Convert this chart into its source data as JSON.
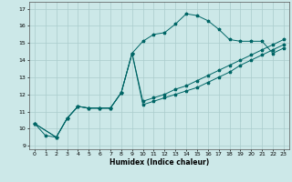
{
  "xlabel": "Humidex (Indice chaleur)",
  "bg_color": "#cce8e8",
  "grid_color": "#aacccc",
  "line_color": "#006666",
  "xlim": [
    -0.5,
    23.5
  ],
  "ylim": [
    8.8,
    17.4
  ],
  "xticks": [
    0,
    1,
    2,
    3,
    4,
    5,
    6,
    7,
    8,
    9,
    10,
    11,
    12,
    13,
    14,
    15,
    16,
    17,
    18,
    19,
    20,
    21,
    22,
    23
  ],
  "yticks": [
    9,
    10,
    11,
    12,
    13,
    14,
    15,
    16,
    17
  ],
  "line1_x": [
    0,
    1,
    2,
    3,
    4,
    5,
    6,
    7,
    8,
    9,
    10,
    11,
    12,
    13,
    14,
    15,
    16,
    17,
    18,
    19,
    20,
    21,
    22,
    23
  ],
  "line1_y": [
    10.3,
    9.6,
    9.5,
    10.6,
    11.3,
    11.2,
    11.2,
    11.2,
    12.1,
    14.4,
    15.1,
    15.5,
    15.6,
    16.1,
    16.7,
    16.6,
    16.3,
    15.8,
    15.2,
    15.1,
    15.1,
    15.1,
    14.4,
    14.7
  ],
  "line2_x": [
    0,
    2,
    3,
    4,
    5,
    6,
    7,
    8,
    9,
    10,
    11,
    12,
    13,
    14,
    15,
    16,
    17,
    18,
    19,
    20,
    21,
    22,
    23
  ],
  "line2_y": [
    10.3,
    9.5,
    10.6,
    11.3,
    11.2,
    11.2,
    11.2,
    12.1,
    14.4,
    11.6,
    11.8,
    12.0,
    12.3,
    12.5,
    12.8,
    13.1,
    13.4,
    13.7,
    14.0,
    14.3,
    14.6,
    14.9,
    15.2
  ],
  "line3_x": [
    0,
    2,
    3,
    4,
    5,
    6,
    7,
    8,
    9,
    10,
    11,
    12,
    13,
    14,
    15,
    16,
    17,
    18,
    19,
    20,
    21,
    22,
    23
  ],
  "line3_y": [
    10.3,
    9.5,
    10.6,
    11.3,
    11.2,
    11.2,
    11.2,
    12.1,
    14.4,
    11.4,
    11.6,
    11.8,
    12.0,
    12.2,
    12.4,
    12.7,
    13.0,
    13.3,
    13.7,
    14.0,
    14.3,
    14.6,
    14.9
  ]
}
